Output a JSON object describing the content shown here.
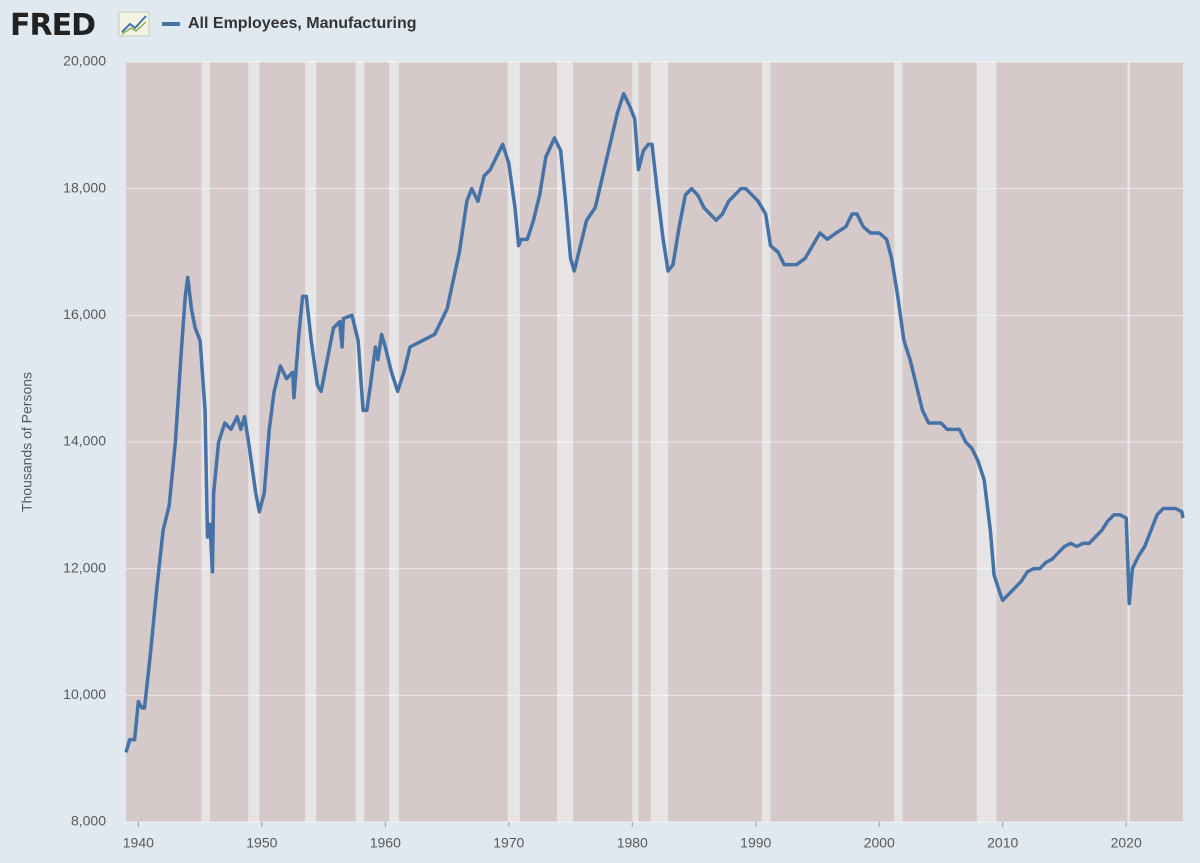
{
  "chart_data": {
    "type": "line",
    "logo": "FRED",
    "ylabel": "Thousands of Persons",
    "xlim": [
      1939,
      2024.6
    ],
    "ylim": [
      8000,
      20000
    ],
    "xticks": [
      1940,
      1950,
      1960,
      1970,
      1980,
      1990,
      2000,
      2010,
      2020
    ],
    "yticks": [
      {
        "value": 8000,
        "label": "8,000"
      },
      {
        "value": 10000,
        "label": "10,000"
      },
      {
        "value": 12000,
        "label": "12,000"
      },
      {
        "value": 14000,
        "label": "14,000"
      },
      {
        "value": 16000,
        "label": "16,000"
      },
      {
        "value": 18000,
        "label": "18,000"
      },
      {
        "value": 20000,
        "label": "20,000"
      }
    ],
    "grid": true,
    "background_color": "#d5c9c9",
    "recession_color": "#e6e4e4",
    "recessions": [
      [
        1945.1,
        1945.8
      ],
      [
        1948.9,
        1949.8
      ],
      [
        1953.5,
        1954.4
      ],
      [
        1957.6,
        1958.3
      ],
      [
        1960.3,
        1961.1
      ],
      [
        1969.9,
        1970.9
      ],
      [
        1973.9,
        1975.2
      ],
      [
        1980.0,
        1980.5
      ],
      [
        1981.5,
        1982.9
      ],
      [
        1990.5,
        1991.2
      ],
      [
        2001.2,
        2001.9
      ],
      [
        2007.9,
        2009.5
      ],
      [
        2020.1,
        2020.3
      ]
    ],
    "x": [
      1939.0,
      1939.3,
      1939.7,
      1940.0,
      1940.3,
      1940.5,
      1941.0,
      1941.5,
      1942.0,
      1942.5,
      1943.0,
      1943.5,
      1943.8,
      1944.0,
      1944.3,
      1944.6,
      1945.0,
      1945.4,
      1945.6,
      1945.8,
      1946.0,
      1946.1,
      1946.5,
      1947.0,
      1947.5,
      1948.0,
      1948.3,
      1948.6,
      1949.0,
      1949.5,
      1949.8,
      1950.2,
      1950.6,
      1951.0,
      1951.5,
      1952.0,
      1952.5,
      1952.6,
      1953.0,
      1953.3,
      1953.6,
      1954.0,
      1954.5,
      1954.8,
      1955.3,
      1955.8,
      1956.3,
      1956.5,
      1956.6,
      1957.3,
      1957.8,
      1958.2,
      1958.5,
      1958.8,
      1959.2,
      1959.4,
      1959.7,
      1960.0,
      1960.5,
      1961.0,
      1961.5,
      1962.0,
      1963.0,
      1964.0,
      1965.0,
      1966.0,
      1966.6,
      1967.0,
      1967.5,
      1968.0,
      1968.5,
      1969.0,
      1969.5,
      1970.0,
      1970.5,
      1970.8,
      1971.0,
      1971.5,
      1972.0,
      1972.5,
      1973.0,
      1973.7,
      1974.2,
      1974.6,
      1975.0,
      1975.3,
      1975.8,
      1976.3,
      1977.0,
      1977.6,
      1978.2,
      1978.8,
      1979.3,
      1979.8,
      1980.2,
      1980.5,
      1980.9,
      1981.3,
      1981.6,
      1982.0,
      1982.5,
      1982.9,
      1983.3,
      1983.8,
      1984.3,
      1984.8,
      1985.3,
      1985.8,
      1986.3,
      1986.8,
      1987.3,
      1987.8,
      1988.3,
      1988.8,
      1989.2,
      1989.7,
      1990.2,
      1990.8,
      1991.2,
      1991.8,
      1992.3,
      1992.8,
      1993.3,
      1994.0,
      1994.6,
      1995.2,
      1995.8,
      1996.5,
      1997.3,
      1997.8,
      1998.2,
      1998.7,
      1999.3,
      2000.0,
      2000.6,
      2001.0,
      2001.5,
      2002.0,
      2002.5,
      2003.0,
      2003.5,
      2004.0,
      2004.5,
      2005.0,
      2005.5,
      2006.0,
      2006.5,
      2007.0,
      2007.5,
      2008.0,
      2008.5,
      2009.0,
      2009.3,
      2009.8,
      2010.0,
      2010.5,
      2011.0,
      2011.5,
      2012.0,
      2012.5,
      2013.0,
      2013.5,
      2014.0,
      2014.5,
      2015.0,
      2015.5,
      2016.0,
      2016.5,
      2017.0,
      2017.5,
      2018.0,
      2018.5,
      2019.0,
      2019.5,
      2020.0,
      2020.25,
      2020.5,
      2021.0,
      2021.5,
      2022.0,
      2022.5,
      2023.0,
      2023.5,
      2024.0,
      2024.5,
      2024.6
    ],
    "series": [
      {
        "name": "All Employees, Manufacturing",
        "color": "#4572a7",
        "values": [
          9100,
          9300,
          9300,
          9900,
          9800,
          9800,
          10700,
          11700,
          12600,
          13000,
          14000,
          15500,
          16300,
          16600,
          16100,
          15800,
          15600,
          14500,
          12500,
          12700,
          11950,
          13200,
          14000,
          14300,
          14200,
          14400,
          14200,
          14400,
          13900,
          13200,
          12900,
          13200,
          14200,
          14800,
          15200,
          15000,
          15100,
          14700,
          15700,
          16300,
          16300,
          15600,
          14900,
          14800,
          15300,
          15800,
          15900,
          15500,
          15950,
          16000,
          15600,
          14500,
          14500,
          14900,
          15500,
          15300,
          15700,
          15500,
          15100,
          14800,
          15100,
          15500,
          15600,
          15700,
          16100,
          17000,
          17800,
          18000,
          17800,
          18200,
          18300,
          18500,
          18700,
          18400,
          17700,
          17100,
          17200,
          17200,
          17500,
          17900,
          18500,
          18800,
          18600,
          17800,
          16900,
          16700,
          17100,
          17500,
          17700,
          18200,
          18700,
          19200,
          19500,
          19300,
          19100,
          18300,
          18600,
          18700,
          18700,
          18000,
          17200,
          16700,
          16800,
          17400,
          17900,
          18000,
          17900,
          17700,
          17600,
          17500,
          17600,
          17800,
          17900,
          18000,
          18000,
          17900,
          17800,
          17600,
          17100,
          17000,
          16800,
          16800,
          16800,
          16900,
          17100,
          17300,
          17200,
          17300,
          17400,
          17600,
          17600,
          17400,
          17300,
          17300,
          17200,
          16900,
          16300,
          15600,
          15300,
          14900,
          14500,
          14300,
          14300,
          14300,
          14200,
          14200,
          14200,
          14000,
          13900,
          13700,
          13400,
          12600,
          11900,
          11600,
          11500,
          11600,
          11700,
          11800,
          11950,
          12000,
          12000,
          12100,
          12150,
          12250,
          12350,
          12400,
          12350,
          12400,
          12400,
          12500,
          12600,
          12750,
          12850,
          12850,
          12800,
          11450,
          12000,
          12200,
          12350,
          12600,
          12850,
          12950,
          12950,
          12950,
          12900,
          12800
        ]
      }
    ]
  }
}
